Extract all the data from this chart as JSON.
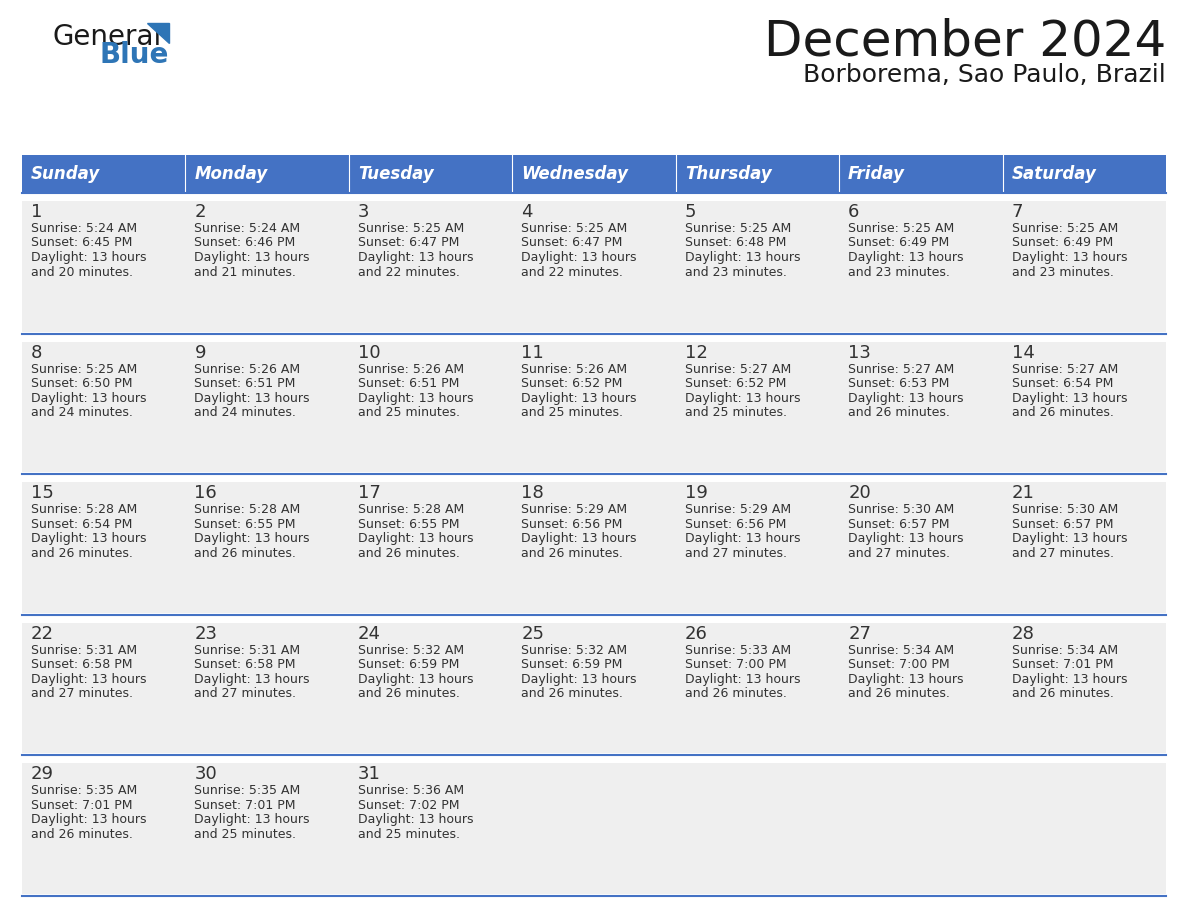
{
  "title": "December 2024",
  "subtitle": "Borborema, Sao Paulo, Brazil",
  "header_color": "#4472C4",
  "header_text_color": "#FFFFFF",
  "bg_color": "#FFFFFF",
  "cell_bg_color": "#EFEFEF",
  "separator_color": "#4472C4",
  "text_color": "#333333",
  "day_name_color": "#222222",
  "day_headers": [
    "Sunday",
    "Monday",
    "Tuesday",
    "Wednesday",
    "Thursday",
    "Friday",
    "Saturday"
  ],
  "weeks": [
    [
      {
        "day": "1",
        "sunrise": "5:24 AM",
        "sunset": "6:45 PM",
        "daylight_min": "and 20 minutes."
      },
      {
        "day": "2",
        "sunrise": "5:24 AM",
        "sunset": "6:46 PM",
        "daylight_min": "and 21 minutes."
      },
      {
        "day": "3",
        "sunrise": "5:25 AM",
        "sunset": "6:47 PM",
        "daylight_min": "and 22 minutes."
      },
      {
        "day": "4",
        "sunrise": "5:25 AM",
        "sunset": "6:47 PM",
        "daylight_min": "and 22 minutes."
      },
      {
        "day": "5",
        "sunrise": "5:25 AM",
        "sunset": "6:48 PM",
        "daylight_min": "and 23 minutes."
      },
      {
        "day": "6",
        "sunrise": "5:25 AM",
        "sunset": "6:49 PM",
        "daylight_min": "and 23 minutes."
      },
      {
        "day": "7",
        "sunrise": "5:25 AM",
        "sunset": "6:49 PM",
        "daylight_min": "and 23 minutes."
      }
    ],
    [
      {
        "day": "8",
        "sunrise": "5:25 AM",
        "sunset": "6:50 PM",
        "daylight_min": "and 24 minutes."
      },
      {
        "day": "9",
        "sunrise": "5:26 AM",
        "sunset": "6:51 PM",
        "daylight_min": "and 24 minutes."
      },
      {
        "day": "10",
        "sunrise": "5:26 AM",
        "sunset": "6:51 PM",
        "daylight_min": "and 25 minutes."
      },
      {
        "day": "11",
        "sunrise": "5:26 AM",
        "sunset": "6:52 PM",
        "daylight_min": "and 25 minutes."
      },
      {
        "day": "12",
        "sunrise": "5:27 AM",
        "sunset": "6:52 PM",
        "daylight_min": "and 25 minutes."
      },
      {
        "day": "13",
        "sunrise": "5:27 AM",
        "sunset": "6:53 PM",
        "daylight_min": "and 26 minutes."
      },
      {
        "day": "14",
        "sunrise": "5:27 AM",
        "sunset": "6:54 PM",
        "daylight_min": "and 26 minutes."
      }
    ],
    [
      {
        "day": "15",
        "sunrise": "5:28 AM",
        "sunset": "6:54 PM",
        "daylight_min": "and 26 minutes."
      },
      {
        "day": "16",
        "sunrise": "5:28 AM",
        "sunset": "6:55 PM",
        "daylight_min": "and 26 minutes."
      },
      {
        "day": "17",
        "sunrise": "5:28 AM",
        "sunset": "6:55 PM",
        "daylight_min": "and 26 minutes."
      },
      {
        "day": "18",
        "sunrise": "5:29 AM",
        "sunset": "6:56 PM",
        "daylight_min": "and 26 minutes."
      },
      {
        "day": "19",
        "sunrise": "5:29 AM",
        "sunset": "6:56 PM",
        "daylight_min": "and 27 minutes."
      },
      {
        "day": "20",
        "sunrise": "5:30 AM",
        "sunset": "6:57 PM",
        "daylight_min": "and 27 minutes."
      },
      {
        "day": "21",
        "sunrise": "5:30 AM",
        "sunset": "6:57 PM",
        "daylight_min": "and 27 minutes."
      }
    ],
    [
      {
        "day": "22",
        "sunrise": "5:31 AM",
        "sunset": "6:58 PM",
        "daylight_min": "and 27 minutes."
      },
      {
        "day": "23",
        "sunrise": "5:31 AM",
        "sunset": "6:58 PM",
        "daylight_min": "and 27 minutes."
      },
      {
        "day": "24",
        "sunrise": "5:32 AM",
        "sunset": "6:59 PM",
        "daylight_min": "and 26 minutes."
      },
      {
        "day": "25",
        "sunrise": "5:32 AM",
        "sunset": "6:59 PM",
        "daylight_min": "and 26 minutes."
      },
      {
        "day": "26",
        "sunrise": "5:33 AM",
        "sunset": "7:00 PM",
        "daylight_min": "and 26 minutes."
      },
      {
        "day": "27",
        "sunrise": "5:34 AM",
        "sunset": "7:00 PM",
        "daylight_min": "and 26 minutes."
      },
      {
        "day": "28",
        "sunrise": "5:34 AM",
        "sunset": "7:01 PM",
        "daylight_min": "and 26 minutes."
      }
    ],
    [
      {
        "day": "29",
        "sunrise": "5:35 AM",
        "sunset": "7:01 PM",
        "daylight_min": "and 26 minutes."
      },
      {
        "day": "30",
        "sunrise": "5:35 AM",
        "sunset": "7:01 PM",
        "daylight_min": "and 25 minutes."
      },
      {
        "day": "31",
        "sunrise": "5:36 AM",
        "sunset": "7:02 PM",
        "daylight_min": "and 25 minutes."
      },
      null,
      null,
      null,
      null
    ]
  ],
  "logo_general_fontsize": 20,
  "logo_blue_fontsize": 20,
  "title_fontsize": 36,
  "subtitle_fontsize": 18,
  "header_fontsize": 12,
  "day_num_fontsize": 13,
  "cell_text_fontsize": 9
}
